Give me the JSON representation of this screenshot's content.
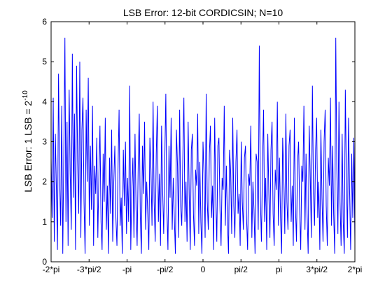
{
  "chart_data": {
    "type": "line",
    "title": "LSB Error: 12-bit CORDICSIN; N=10",
    "ylabel": {
      "base": "LSB Error: 1 LSB = 2",
      "exponent": "-10"
    },
    "xlabel": "",
    "xlim": [
      -6.283185307,
      6.283185307
    ],
    "ylim": [
      0,
      6
    ],
    "grid": false,
    "legend": null,
    "x_ticks": [
      {
        "value": -6.283185307,
        "label": "-2*pi"
      },
      {
        "value": -4.71238898,
        "label": "-3*pi/2"
      },
      {
        "value": -3.141592654,
        "label": "-pi"
      },
      {
        "value": -1.570796327,
        "label": "-pi/2"
      },
      {
        "value": 0,
        "label": "0"
      },
      {
        "value": 1.570796327,
        "label": "pi/2"
      },
      {
        "value": 3.141592654,
        "label": "pi"
      },
      {
        "value": 4.71238898,
        "label": "3*pi/2"
      },
      {
        "value": 6.283185307,
        "label": "2*pi"
      }
    ],
    "y_ticks": [
      {
        "value": 0,
        "label": "0"
      },
      {
        "value": 1,
        "label": "1"
      },
      {
        "value": 2,
        "label": "2"
      },
      {
        "value": 3,
        "label": "3"
      },
      {
        "value": 4,
        "label": "4"
      },
      {
        "value": 5,
        "label": "5"
      },
      {
        "value": 6,
        "label": "6"
      }
    ],
    "series": [
      {
        "color": "#0000ff",
        "x_start": -6.283185307,
        "x_end": 6.283185307,
        "values": [
          2.6,
          1.1,
          4.1,
          0.5,
          3.2,
          1.8,
          0.3,
          4.7,
          2.1,
          0.9,
          3.9,
          0.2,
          2.8,
          5.6,
          1.0,
          3.5,
          0.4,
          4.3,
          2.2,
          0.8,
          5.2,
          1.6,
          3.7,
          0.3,
          4.9,
          2.5,
          1.2,
          5.0,
          0.6,
          3.3,
          4.1,
          1.5,
          0.2,
          3.8,
          2.0,
          4.6,
          0.9,
          2.9,
          1.3,
          3.9,
          0.4,
          2.4,
          1.7,
          3.1,
          0.6,
          2.2,
          3.4,
          1.0,
          0.3,
          2.7,
          1.5,
          3.6,
          0.8,
          1.9,
          0.2,
          2.6,
          1.2,
          3.3,
          0.5,
          2.0,
          2.9,
          1.1,
          0.4,
          2.3,
          3.8,
          0.9,
          1.6,
          0.2,
          2.8,
          1.4,
          3.0,
          0.7,
          2.1,
          1.0,
          4.4,
          0.3,
          1.8,
          2.6,
          0.6,
          3.2,
          1.3,
          0.4,
          2.4,
          3.7,
          1.1,
          0.2,
          2.9,
          1.7,
          3.5,
          0.8,
          2.0,
          1.2,
          0.3,
          3.1,
          2.3,
          0.9,
          4.0,
          1.5,
          0.5,
          2.7,
          3.9,
          1.0,
          2.2,
          0.4,
          3.4,
          1.8,
          0.7,
          2.5,
          4.2,
          1.3,
          0.3,
          2.9,
          1.6,
          3.6,
          0.8,
          2.1,
          1.1,
          0.2,
          3.3,
          2.4,
          0.6,
          3.8,
          1.4,
          0.9,
          2.6,
          4.1,
          1.0,
          2.0,
          0.5,
          3.5,
          1.7,
          0.3,
          2.8,
          3.2,
          1.2,
          0.4,
          2.3,
          1.9,
          3.7,
          0.7,
          2.5,
          1.0,
          0.2,
          3.0,
          2.2,
          0.6,
          4.2,
          1.5,
          0.8,
          2.7,
          3.4,
          1.1,
          1.9,
          0.3,
          3.6,
          1.6,
          0.5,
          2.9,
          3.1,
          1.3,
          0.4,
          2.1,
          1.8,
          3.9,
          0.9,
          2.4,
          1.0,
          0.2,
          2.8,
          2.3,
          0.7,
          3.6,
          1.4,
          0.6,
          2.5,
          3.3,
          1.2,
          1.7,
          0.4,
          3.0,
          1.5,
          0.8,
          2.6,
          2.9,
          1.1,
          0.3,
          2.2,
          1.9,
          3.4,
          0.6,
          2.0,
          1.3,
          0.2,
          2.7,
          2.5,
          0.8,
          5.4,
          1.6,
          0.5,
          2.4,
          3.8,
          1.0,
          2.1,
          0.3,
          3.2,
          1.7,
          0.6,
          2.8,
          3.5,
          1.2,
          0.4,
          2.3,
          1.8,
          4.0,
          0.9,
          2.6,
          1.1,
          0.2,
          3.1,
          2.2,
          0.7,
          3.7,
          1.5,
          0.8,
          2.9,
          3.3,
          1.0,
          1.9,
          0.4,
          3.6,
          1.4,
          0.5,
          2.5,
          3.0,
          1.3,
          0.3,
          2.4,
          2.0,
          3.9,
          0.8,
          2.7,
          1.2,
          0.2,
          3.4,
          2.1,
          0.6,
          4.4,
          1.7,
          0.9,
          2.8,
          3.6,
          1.1,
          2.0,
          0.3,
          3.3,
          1.6,
          0.5,
          3.0,
          3.8,
          1.4,
          0.4,
          2.6,
          1.9,
          4.1,
          0.9,
          2.9,
          1.2,
          0.2,
          5.6,
          2.3,
          0.7,
          4.0,
          1.5,
          0.4,
          3.2,
          1.0,
          0.2,
          4.3,
          2.1,
          0.6,
          3.6,
          1.8,
          0.3,
          2.7,
          1.1,
          3.1,
          0.5
        ]
      }
    ]
  }
}
